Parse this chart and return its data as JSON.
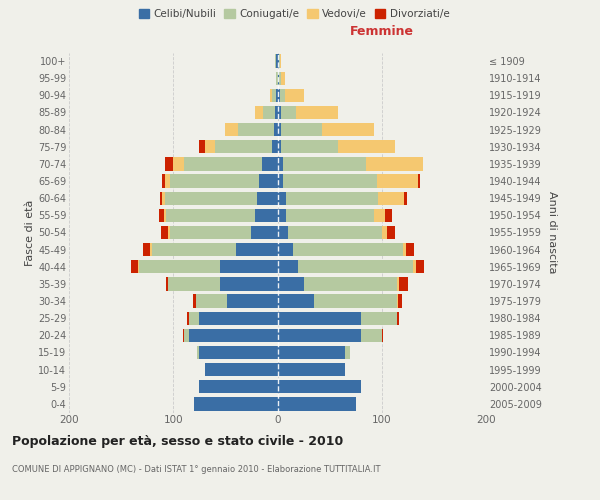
{
  "age_groups": [
    "0-4",
    "5-9",
    "10-14",
    "15-19",
    "20-24",
    "25-29",
    "30-34",
    "35-39",
    "40-44",
    "45-49",
    "50-54",
    "55-59",
    "60-64",
    "65-69",
    "70-74",
    "75-79",
    "80-84",
    "85-89",
    "90-94",
    "95-99",
    "100+"
  ],
  "birth_years": [
    "2005-2009",
    "2000-2004",
    "1995-1999",
    "1990-1994",
    "1985-1989",
    "1980-1984",
    "1975-1979",
    "1970-1974",
    "1965-1969",
    "1960-1964",
    "1955-1959",
    "1950-1954",
    "1945-1949",
    "1940-1944",
    "1935-1939",
    "1930-1934",
    "1925-1929",
    "1920-1924",
    "1915-1919",
    "1910-1914",
    "≤ 1909"
  ],
  "male": {
    "celibi": [
      80,
      75,
      70,
      75,
      85,
      75,
      48,
      55,
      55,
      40,
      25,
      22,
      20,
      18,
      15,
      5,
      3,
      2,
      1,
      0,
      1
    ],
    "coniugati": [
      0,
      0,
      0,
      2,
      5,
      10,
      30,
      50,
      78,
      80,
      78,
      85,
      88,
      85,
      75,
      55,
      35,
      12,
      4,
      1,
      1
    ],
    "vedovi": [
      0,
      0,
      0,
      0,
      0,
      0,
      0,
      0,
      1,
      2,
      2,
      2,
      3,
      5,
      10,
      10,
      12,
      8,
      2,
      0,
      0
    ],
    "divorziati": [
      0,
      0,
      0,
      0,
      1,
      2,
      3,
      2,
      7,
      7,
      7,
      5,
      2,
      3,
      8,
      5,
      0,
      0,
      0,
      0,
      0
    ]
  },
  "female": {
    "nubili": [
      75,
      80,
      65,
      65,
      80,
      80,
      35,
      25,
      20,
      15,
      10,
      8,
      8,
      5,
      5,
      3,
      3,
      3,
      2,
      1,
      1
    ],
    "coniugate": [
      0,
      0,
      0,
      5,
      20,
      35,
      80,
      90,
      110,
      105,
      90,
      85,
      88,
      90,
      80,
      55,
      40,
      15,
      5,
      2,
      1
    ],
    "vedove": [
      0,
      0,
      0,
      0,
      0,
      0,
      1,
      2,
      3,
      3,
      5,
      10,
      25,
      40,
      55,
      55,
      50,
      40,
      18,
      4,
      1
    ],
    "divorziate": [
      0,
      0,
      0,
      0,
      1,
      2,
      3,
      8,
      8,
      8,
      8,
      7,
      3,
      2,
      0,
      0,
      0,
      0,
      0,
      0,
      0
    ]
  },
  "colors": {
    "celibi": "#3a6ea5",
    "coniugati": "#b5c9a0",
    "vedovi": "#f5c870",
    "divorziati": "#cc2200"
  },
  "xlim": 200,
  "title": "Popolazione per età, sesso e stato civile - 2010",
  "subtitle": "COMUNE DI APPIGNANO (MC) - Dati ISTAT 1° gennaio 2010 - Elaborazione TUTTITALIA.IT",
  "ylabel_left": "Fasce di età",
  "ylabel_right": "Anni di nascita",
  "xlabel_right": "Femmine",
  "bg_color": "#f0f0ea",
  "legend_labels": [
    "Celibi/Nubili",
    "Coniugati/e",
    "Vedovi/e",
    "Divorziati/e"
  ]
}
